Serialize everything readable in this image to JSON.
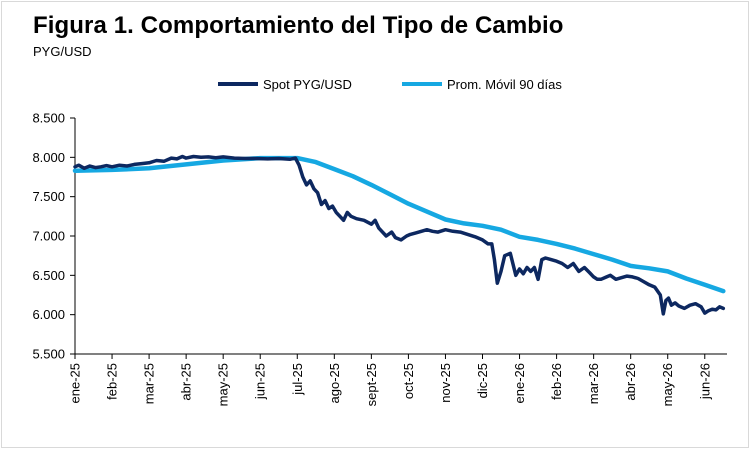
{
  "title": "Figura 1. Comportamiento  del Tipo de Cambio",
  "subtitle": "PYG/USD",
  "colors": {
    "spot": "#0d2860",
    "avg": "#16a8e2",
    "axis": "#000000",
    "frame": "#d9d9d9"
  },
  "chart_data": {
    "type": "line",
    "title": "Figura 1. Comportamiento  del Tipo de Cambio",
    "subtitle": "PYG/USD",
    "xlabel": "",
    "ylabel": "",
    "ylim": [
      5500,
      8500
    ],
    "yticks": [
      5500,
      6000,
      6500,
      7000,
      7500,
      8000,
      8500
    ],
    "ytick_labels": [
      "5.500",
      "6.000",
      "6.500",
      "7.000",
      "7.500",
      "8.000",
      "8.500"
    ],
    "xlim": [
      0,
      17.6
    ],
    "xticks": [
      0,
      1,
      2,
      3,
      4,
      5,
      6,
      7,
      8,
      9,
      10,
      11,
      12,
      13,
      14,
      15,
      16,
      17
    ],
    "xtick_labels": [
      "ene-25",
      "feb-25",
      "mar-25",
      "abr-25",
      "may-25",
      "jun-25",
      "jul-25",
      "ago-25",
      "sept-25",
      "oct-25",
      "nov-25",
      "dic-25",
      "ene-26",
      "feb-26",
      "mar-26",
      "abr-26",
      "may-26",
      "jun-26"
    ],
    "grid": false,
    "legend_position": "top-center",
    "series": [
      {
        "name": "Spot PYG/USD",
        "x": [
          0,
          0.1,
          0.25,
          0.4,
          0.55,
          0.7,
          0.85,
          1.0,
          1.2,
          1.4,
          1.6,
          1.8,
          2.0,
          2.2,
          2.4,
          2.6,
          2.75,
          2.9,
          3.0,
          3.2,
          3.4,
          3.6,
          3.8,
          4.0,
          4.3,
          4.6,
          4.9,
          5.2,
          5.5,
          5.8,
          5.95,
          6.05,
          6.15,
          6.25,
          6.35,
          6.45,
          6.55,
          6.65,
          6.75,
          6.85,
          6.95,
          7.05,
          7.15,
          7.25,
          7.35,
          7.45,
          7.6,
          7.8,
          8.0,
          8.1,
          8.2,
          8.3,
          8.4,
          8.55,
          8.65,
          8.8,
          8.95,
          9.05,
          9.2,
          9.35,
          9.5,
          9.65,
          9.8,
          10.0,
          10.2,
          10.4,
          10.6,
          10.8,
          11.0,
          11.15,
          11.25,
          11.32,
          11.4,
          11.5,
          11.6,
          11.75,
          11.9,
          12.0,
          12.1,
          12.2,
          12.3,
          12.4,
          12.5,
          12.6,
          12.7,
          12.85,
          13.0,
          13.15,
          13.3,
          13.45,
          13.6,
          13.75,
          13.9,
          14.0,
          14.1,
          14.2,
          14.35,
          14.45,
          14.6,
          14.75,
          14.9,
          15.05,
          15.2,
          15.35,
          15.5,
          15.65,
          15.8,
          15.88,
          15.95,
          16.02,
          16.1,
          16.2,
          16.3,
          16.45,
          16.6,
          16.75,
          16.9,
          17.0,
          17.1,
          17.2,
          17.3,
          17.4,
          17.5
        ],
        "values": [
          7880,
          7900,
          7860,
          7890,
          7870,
          7880,
          7895,
          7880,
          7900,
          7890,
          7910,
          7920,
          7930,
          7960,
          7950,
          7990,
          7980,
          8010,
          7990,
          8010,
          8000,
          8005,
          7995,
          8005,
          7990,
          7985,
          7985,
          7980,
          7985,
          7975,
          7990,
          7900,
          7750,
          7650,
          7700,
          7600,
          7550,
          7400,
          7450,
          7350,
          7380,
          7300,
          7250,
          7200,
          7300,
          7250,
          7220,
          7200,
          7150,
          7200,
          7100,
          7050,
          7000,
          7050,
          6980,
          6950,
          7000,
          7020,
          7040,
          7060,
          7080,
          7060,
          7050,
          7080,
          7060,
          7050,
          7020,
          6990,
          6950,
          6900,
          6900,
          6700,
          6400,
          6550,
          6750,
          6780,
          6500,
          6580,
          6520,
          6600,
          6550,
          6600,
          6450,
          6700,
          6720,
          6700,
          6680,
          6650,
          6600,
          6650,
          6550,
          6600,
          6530,
          6480,
          6450,
          6450,
          6480,
          6500,
          6450,
          6470,
          6490,
          6480,
          6460,
          6420,
          6380,
          6350,
          6250,
          6010,
          6180,
          6210,
          6120,
          6150,
          6110,
          6080,
          6120,
          6140,
          6100,
          6020,
          6050,
          6070,
          6060,
          6100,
          6080
        ]
      },
      {
        "name": "Prom. Móvil 90 días",
        "x": [
          0,
          1,
          2,
          3,
          4,
          5,
          5.5,
          6.0,
          6.5,
          7.0,
          7.5,
          8.0,
          8.5,
          9.0,
          9.5,
          10.0,
          10.5,
          11.0,
          11.5,
          12.0,
          12.5,
          13.0,
          13.5,
          14.0,
          14.5,
          15.0,
          15.5,
          16.0,
          16.5,
          17.0,
          17.5
        ],
        "values": [
          7830,
          7840,
          7860,
          7910,
          7960,
          7990,
          7990,
          7990,
          7940,
          7850,
          7760,
          7650,
          7530,
          7410,
          7310,
          7210,
          7160,
          7130,
          7080,
          6990,
          6950,
          6900,
          6840,
          6770,
          6700,
          6620,
          6590,
          6550,
          6460,
          6380,
          6300
        ]
      }
    ]
  }
}
